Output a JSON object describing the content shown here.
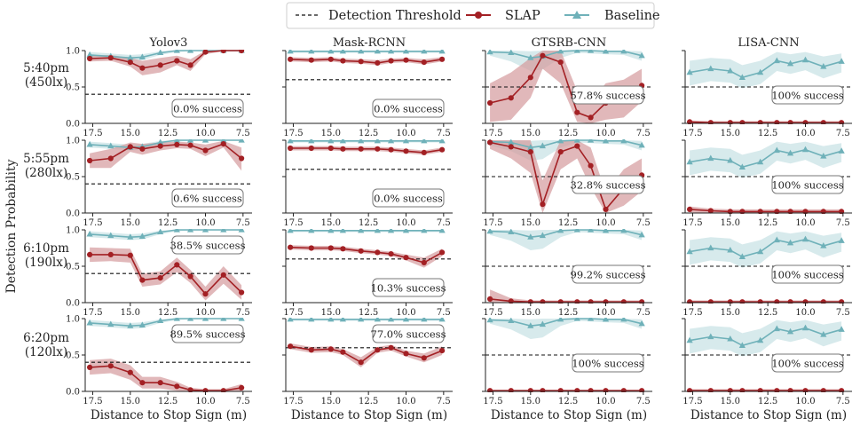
{
  "figure": {
    "ylabel": "Detection Probability",
    "xlabel": "Distance to Stop Sign (m)",
    "colors": {
      "slap": "#a32024",
      "slap_band": "#d49a9c",
      "baseline": "#6fb1b9",
      "baseline_band": "#c9e3e6",
      "threshold": "#111111"
    }
  },
  "legend": {
    "threshold": "Detection Threshold",
    "slap": "SLAP",
    "baseline": "Baseline"
  },
  "rows": [
    {
      "time": "5:40pm",
      "lux": "(450lx)"
    },
    {
      "time": "5:55pm",
      "lux": "(280lx)"
    },
    {
      "time": "6:10pm",
      "lux": "(190lx)"
    },
    {
      "time": "6:20pm",
      "lux": "(120lx)"
    }
  ],
  "columns": [
    "Yolov3",
    "Mask-RCNN",
    "GTSRB-CNN",
    "LISA-CNN"
  ],
  "chart_data": {
    "type": "line",
    "x": [
      17.7,
      16.3,
      15.0,
      14.2,
      13.0,
      11.9,
      11.0,
      10.0,
      8.8,
      7.6
    ],
    "xlim": [
      18.0,
      6.9
    ],
    "ylim": [
      0.0,
      1.0
    ],
    "xticks": [
      "17.5",
      "15.0",
      "12.5",
      "10.0",
      "7.5"
    ],
    "xtick_values": [
      17.5,
      15.0,
      12.5,
      10.0,
      7.5
    ],
    "yticks": [
      "0.0",
      "0.5",
      "1.0"
    ],
    "ytick_values": [
      0.0,
      0.5,
      1.0
    ],
    "baseline": [
      {
        "values": [
          0.94,
          0.92,
          0.9,
          0.91,
          0.97,
          1.0,
          1.0,
          1.0,
          1.0,
          1.0
        ],
        "lower": [
          0.9,
          0.88,
          0.86,
          0.87,
          0.94,
          0.98,
          0.99,
          0.99,
          0.99,
          0.99
        ],
        "upper": [
          0.98,
          0.96,
          0.94,
          0.95,
          0.99,
          1.0,
          1.0,
          1.0,
          1.0,
          1.0
        ]
      },
      {
        "values": [
          0.99,
          0.99,
          0.99,
          0.99,
          0.99,
          0.99,
          0.99,
          0.99,
          0.99,
          0.99
        ],
        "lower": [
          0.97,
          0.97,
          0.97,
          0.97,
          0.97,
          0.97,
          0.97,
          0.97,
          0.97,
          0.97
        ],
        "upper": [
          1.0,
          1.0,
          1.0,
          1.0,
          1.0,
          1.0,
          1.0,
          1.0,
          1.0,
          1.0
        ]
      },
      {
        "values": [
          0.98,
          0.97,
          0.9,
          0.92,
          0.99,
          1.0,
          1.0,
          0.99,
          0.99,
          0.93
        ],
        "lower": [
          0.93,
          0.85,
          0.72,
          0.74,
          0.9,
          0.97,
          0.96,
          0.95,
          0.94,
          0.86
        ],
        "upper": [
          1.0,
          1.0,
          0.99,
          1.0,
          1.0,
          1.0,
          1.0,
          1.0,
          1.0,
          0.99
        ]
      },
      {
        "values": [
          0.7,
          0.75,
          0.72,
          0.63,
          0.7,
          0.86,
          0.82,
          0.87,
          0.78,
          0.85
        ],
        "lower": [
          0.52,
          0.58,
          0.56,
          0.48,
          0.54,
          0.72,
          0.68,
          0.73,
          0.62,
          0.7
        ],
        "upper": [
          0.86,
          0.9,
          0.88,
          0.8,
          0.86,
          0.98,
          0.95,
          0.98,
          0.92,
          0.96
        ]
      }
    ],
    "panels": [
      {
        "row": 0,
        "col": 0,
        "slap": [
          0.89,
          0.9,
          0.84,
          0.76,
          0.8,
          0.86,
          0.8,
          0.98,
          1.0,
          1.0
        ],
        "lower": [
          0.85,
          0.86,
          0.78,
          0.66,
          0.7,
          0.8,
          0.72,
          0.95,
          0.99,
          0.99
        ],
        "upper": [
          0.93,
          0.94,
          0.9,
          0.86,
          0.9,
          0.93,
          0.88,
          1.0,
          1.0,
          1.0
        ],
        "threshold": 0.4,
        "success": "0.0% success",
        "box": "lower-right"
      },
      {
        "row": 0,
        "col": 1,
        "slap": [
          0.88,
          0.87,
          0.88,
          0.86,
          0.85,
          0.83,
          0.86,
          0.87,
          0.84,
          0.88
        ],
        "lower": [
          0.85,
          0.84,
          0.85,
          0.83,
          0.82,
          0.8,
          0.83,
          0.84,
          0.81,
          0.85
        ],
        "upper": [
          0.91,
          0.9,
          0.91,
          0.89,
          0.88,
          0.87,
          0.89,
          0.9,
          0.88,
          0.91
        ],
        "threshold": 0.6,
        "success": "0.0% success",
        "box": "lower-right"
      },
      {
        "row": 0,
        "col": 2,
        "slap": [
          0.28,
          0.35,
          0.63,
          0.93,
          0.84,
          0.15,
          0.08,
          0.28,
          0.3,
          0.52
        ],
        "lower": [
          0.02,
          0.05,
          0.35,
          0.75,
          0.55,
          0.02,
          0.0,
          0.05,
          0.08,
          0.3
        ],
        "upper": [
          0.55,
          0.7,
          0.9,
          1.0,
          1.0,
          0.45,
          0.3,
          0.55,
          0.6,
          0.75
        ],
        "threshold": 0.5,
        "success": "57.8% success",
        "box": "middle-right"
      },
      {
        "row": 0,
        "col": 3,
        "slap": [
          0.02,
          0.01,
          0.01,
          0.01,
          0.01,
          0.01,
          0.01,
          0.01,
          0.01,
          0.01
        ],
        "lower": [
          0.0,
          0.0,
          0.0,
          0.0,
          0.0,
          0.0,
          0.0,
          0.0,
          0.0,
          0.0
        ],
        "upper": [
          0.04,
          0.03,
          0.03,
          0.03,
          0.03,
          0.03,
          0.03,
          0.03,
          0.03,
          0.03
        ],
        "threshold": 0.5,
        "success": "100% success",
        "box": "middle-right"
      },
      {
        "row": 1,
        "col": 0,
        "slap": [
          0.72,
          0.75,
          0.91,
          0.88,
          0.92,
          0.94,
          0.93,
          0.86,
          0.95,
          0.75
        ],
        "lower": [
          0.62,
          0.62,
          0.84,
          0.8,
          0.86,
          0.89,
          0.88,
          0.78,
          0.9,
          0.58
        ],
        "upper": [
          0.82,
          0.88,
          0.97,
          0.95,
          0.97,
          0.98,
          0.97,
          0.94,
          0.99,
          0.9
        ],
        "threshold": 0.4,
        "success": "0.6% success",
        "box": "lower-right"
      },
      {
        "row": 1,
        "col": 1,
        "slap": [
          0.89,
          0.89,
          0.89,
          0.88,
          0.88,
          0.88,
          0.87,
          0.85,
          0.83,
          0.87
        ],
        "lower": [
          0.86,
          0.86,
          0.86,
          0.85,
          0.85,
          0.85,
          0.84,
          0.82,
          0.8,
          0.84
        ],
        "upper": [
          0.92,
          0.92,
          0.92,
          0.91,
          0.91,
          0.91,
          0.9,
          0.88,
          0.86,
          0.9
        ],
        "threshold": 0.6,
        "success": "0.0% success",
        "box": "lower-right"
      },
      {
        "row": 1,
        "col": 2,
        "slap": [
          0.97,
          0.91,
          0.84,
          0.12,
          0.84,
          0.92,
          0.65,
          0.05,
          0.34,
          0.52
        ],
        "lower": [
          0.88,
          0.75,
          0.55,
          0.0,
          0.6,
          0.75,
          0.35,
          0.0,
          0.1,
          0.3
        ],
        "upper": [
          1.0,
          1.0,
          1.0,
          0.45,
          1.0,
          1.0,
          0.9,
          0.28,
          0.6,
          0.75
        ],
        "threshold": 0.5,
        "success": "32.8% success",
        "box": "middle-right"
      },
      {
        "row": 1,
        "col": 3,
        "slap": [
          0.05,
          0.03,
          0.02,
          0.02,
          0.02,
          0.02,
          0.02,
          0.02,
          0.02,
          0.02
        ],
        "lower": [
          0.01,
          0.0,
          0.0,
          0.0,
          0.0,
          0.0,
          0.0,
          0.0,
          0.0,
          0.0
        ],
        "upper": [
          0.09,
          0.06,
          0.05,
          0.05,
          0.05,
          0.05,
          0.05,
          0.05,
          0.05,
          0.05
        ],
        "threshold": 0.5,
        "success": "100% success",
        "box": "middle-right"
      },
      {
        "row": 2,
        "col": 0,
        "slap": [
          0.66,
          0.66,
          0.65,
          0.31,
          0.34,
          0.52,
          0.36,
          0.12,
          0.38,
          0.14
        ],
        "lower": [
          0.56,
          0.57,
          0.55,
          0.22,
          0.25,
          0.42,
          0.27,
          0.03,
          0.26,
          0.04
        ],
        "upper": [
          0.76,
          0.75,
          0.74,
          0.4,
          0.43,
          0.62,
          0.45,
          0.22,
          0.5,
          0.24
        ],
        "threshold": 0.4,
        "success": "38.5% success",
        "box": "upper-right"
      },
      {
        "row": 2,
        "col": 1,
        "slap": [
          0.76,
          0.75,
          0.75,
          0.74,
          0.71,
          0.69,
          0.67,
          0.62,
          0.55,
          0.69
        ],
        "lower": [
          0.73,
          0.72,
          0.72,
          0.71,
          0.68,
          0.66,
          0.64,
          0.58,
          0.48,
          0.64
        ],
        "upper": [
          0.79,
          0.78,
          0.78,
          0.77,
          0.74,
          0.72,
          0.7,
          0.66,
          0.62,
          0.74
        ],
        "threshold": 0.6,
        "success": "10.3% success",
        "box": "lower-right"
      },
      {
        "row": 2,
        "col": 2,
        "slap": [
          0.05,
          0.02,
          0.01,
          0.01,
          0.01,
          0.01,
          0.01,
          0.01,
          0.01,
          0.01
        ],
        "lower": [
          0.0,
          0.0,
          0.0,
          0.0,
          0.0,
          0.0,
          0.0,
          0.0,
          0.0,
          0.0
        ],
        "upper": [
          0.18,
          0.06,
          0.03,
          0.03,
          0.03,
          0.03,
          0.03,
          0.03,
          0.03,
          0.03
        ],
        "threshold": 0.5,
        "success": "99.2% success",
        "box": "middle-right"
      },
      {
        "row": 2,
        "col": 3,
        "slap": [
          0.01,
          0.01,
          0.01,
          0.01,
          0.01,
          0.01,
          0.01,
          0.01,
          0.01,
          0.01
        ],
        "lower": [
          0.0,
          0.0,
          0.0,
          0.0,
          0.0,
          0.0,
          0.0,
          0.0,
          0.0,
          0.0
        ],
        "upper": [
          0.03,
          0.03,
          0.03,
          0.03,
          0.03,
          0.03,
          0.03,
          0.03,
          0.03,
          0.03
        ],
        "threshold": 0.5,
        "success": "100% success",
        "box": "middle-right"
      },
      {
        "row": 3,
        "col": 0,
        "slap": [
          0.33,
          0.35,
          0.26,
          0.12,
          0.12,
          0.07,
          0.02,
          0.01,
          0.01,
          0.05
        ],
        "lower": [
          0.23,
          0.25,
          0.16,
          0.04,
          0.04,
          0.01,
          0.0,
          0.0,
          0.0,
          0.0
        ],
        "upper": [
          0.43,
          0.45,
          0.36,
          0.2,
          0.2,
          0.13,
          0.05,
          0.03,
          0.03,
          0.1
        ],
        "threshold": 0.4,
        "success": "89.5% success",
        "box": "upper-right"
      },
      {
        "row": 3,
        "col": 1,
        "slap": [
          0.62,
          0.57,
          0.58,
          0.54,
          0.4,
          0.57,
          0.6,
          0.52,
          0.46,
          0.56
        ],
        "lower": [
          0.58,
          0.53,
          0.54,
          0.5,
          0.33,
          0.53,
          0.56,
          0.48,
          0.4,
          0.5
        ],
        "upper": [
          0.66,
          0.61,
          0.62,
          0.58,
          0.47,
          0.61,
          0.64,
          0.56,
          0.52,
          0.62
        ],
        "threshold": 0.6,
        "success": "77.0% success",
        "box": "upper-right"
      },
      {
        "row": 3,
        "col": 2,
        "slap": [
          0.01,
          0.01,
          0.01,
          0.01,
          0.01,
          0.01,
          0.01,
          0.01,
          0.01,
          0.01
        ],
        "lower": [
          0.0,
          0.0,
          0.0,
          0.0,
          0.0,
          0.0,
          0.0,
          0.0,
          0.0,
          0.0
        ],
        "upper": [
          0.02,
          0.02,
          0.02,
          0.02,
          0.02,
          0.02,
          0.02,
          0.02,
          0.02,
          0.02
        ],
        "threshold": 0.5,
        "success": "100% success",
        "box": "middle-right"
      },
      {
        "row": 3,
        "col": 3,
        "slap": [
          0.01,
          0.01,
          0.01,
          0.01,
          0.01,
          0.01,
          0.01,
          0.01,
          0.01,
          0.01
        ],
        "lower": [
          0.0,
          0.0,
          0.0,
          0.0,
          0.0,
          0.0,
          0.0,
          0.0,
          0.0,
          0.0
        ],
        "upper": [
          0.03,
          0.03,
          0.03,
          0.03,
          0.03,
          0.03,
          0.03,
          0.03,
          0.03,
          0.03
        ],
        "threshold": 0.5,
        "success": "100% success",
        "box": "middle-right"
      }
    ]
  }
}
